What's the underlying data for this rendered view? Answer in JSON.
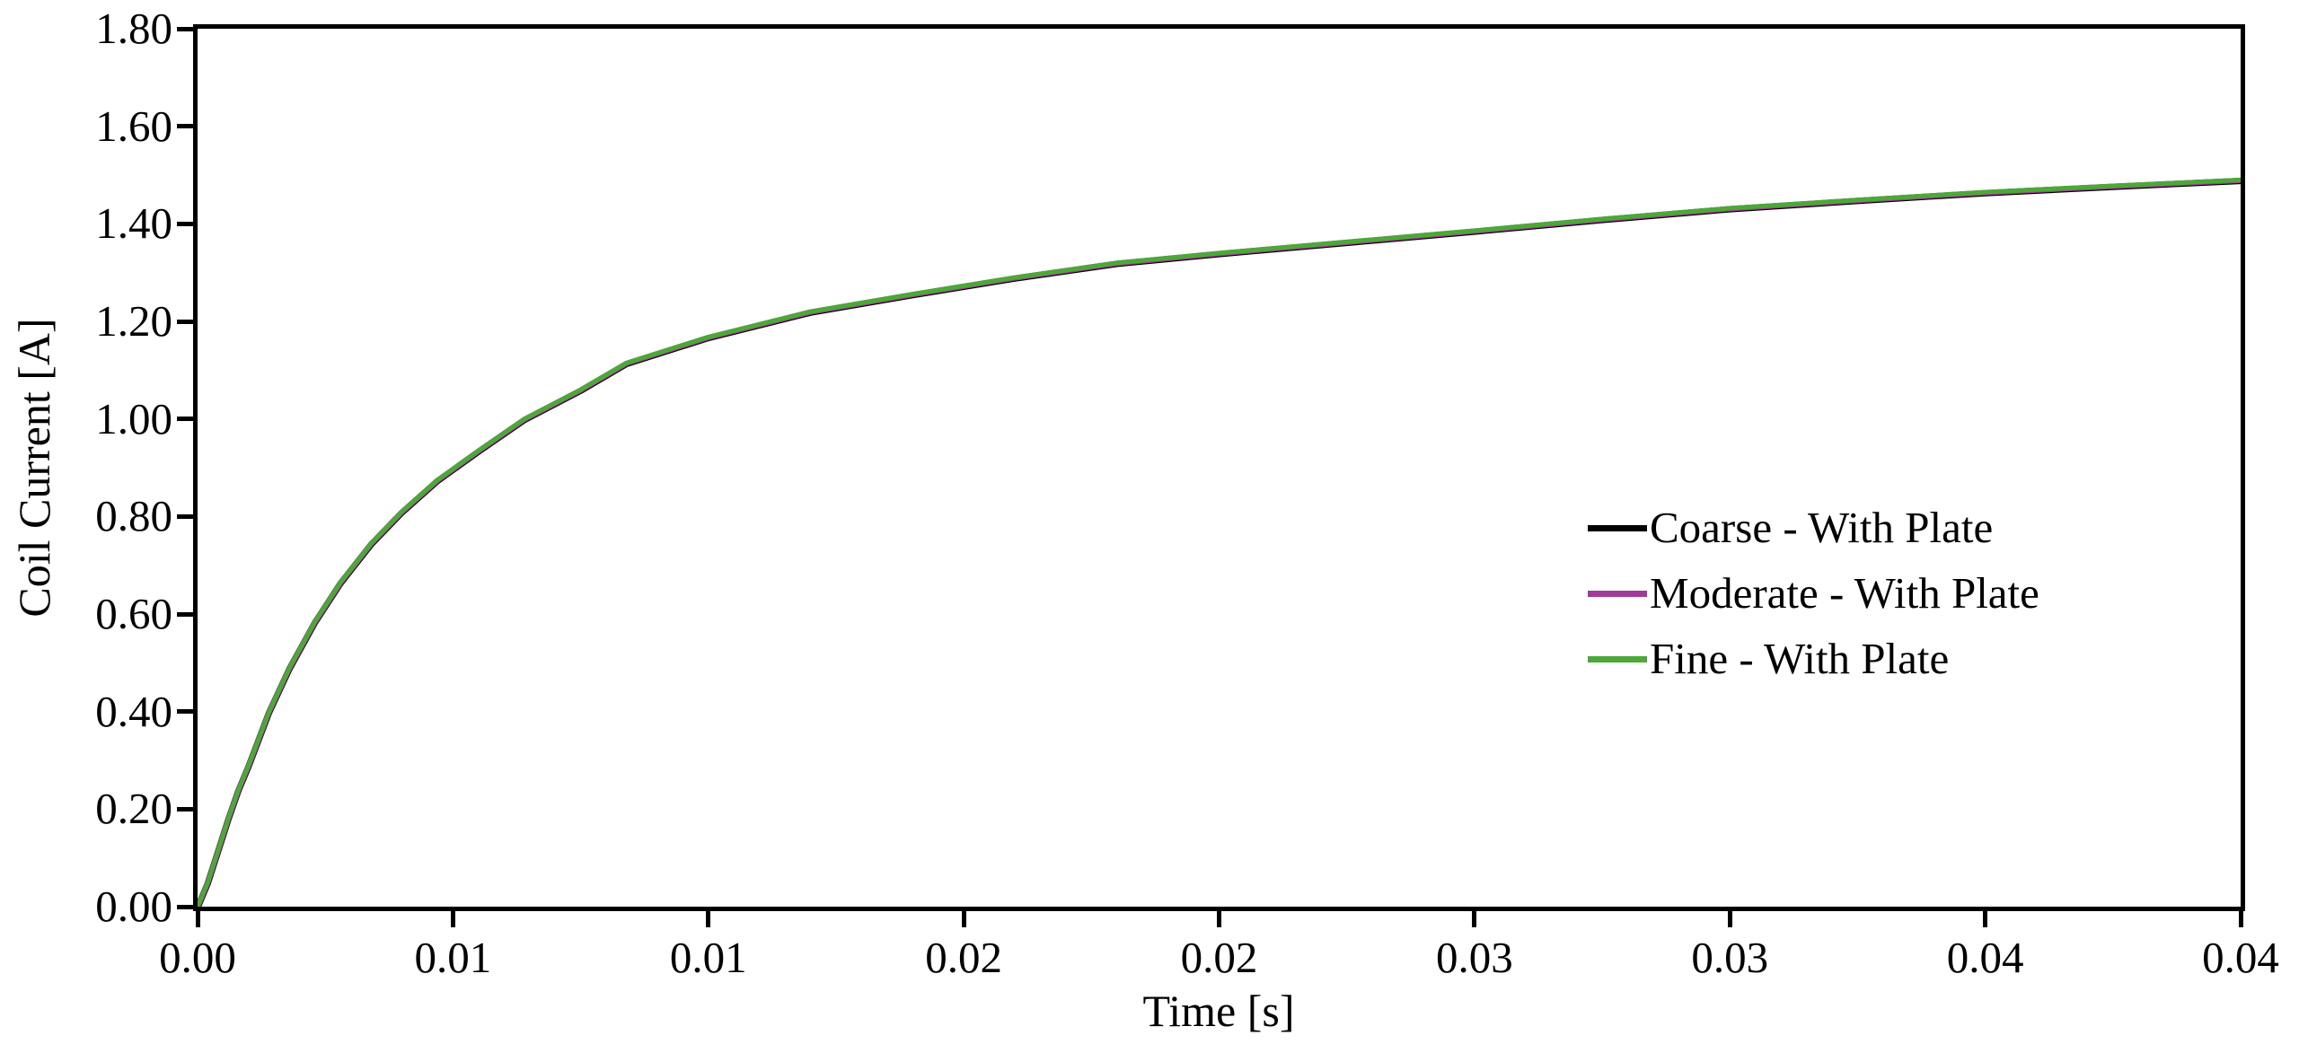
{
  "figure": {
    "background": "#FFFFFF",
    "axis_color": "#000000",
    "tick_style": "outside"
  },
  "chart_data": {
    "type": "line",
    "title": "",
    "xlabel": "Time [s]",
    "ylabel": "Coil Current [A]",
    "xlim": [
      0,
      0.04
    ],
    "ylim": [
      0,
      1.8
    ],
    "grid": "off",
    "legend_position": "inside-right-middle, no border",
    "x_ticks": [
      0,
      0.005,
      0.01,
      0.015,
      0.02,
      0.025,
      0.03,
      0.035,
      0.04
    ],
    "x_tick_labels": [
      "0.00",
      "0.01",
      "0.01",
      "0.02",
      "0.02",
      "0.03",
      "0.03",
      "0.04",
      "0.04"
    ],
    "y_ticks": [
      0,
      0.2,
      0.4,
      0.6,
      0.8,
      1.0,
      1.2,
      1.4,
      1.6,
      1.8
    ],
    "y_tick_labels": [
      "0.00",
      "0.20",
      "0.40",
      "0.60",
      "0.80",
      "1.00",
      "1.20",
      "1.40",
      "1.60",
      "1.80"
    ],
    "x": [
      0,
      0.0002,
      0.0004,
      0.0006,
      0.0008,
      0.001,
      0.0014,
      0.0018,
      0.0023,
      0.0028,
      0.0034,
      0.004,
      0.0047,
      0.0055,
      0.0064,
      0.0075,
      0.0084,
      0.01,
      0.012,
      0.014,
      0.016,
      0.018,
      0.02,
      0.0225,
      0.025,
      0.0275,
      0.03,
      0.0325,
      0.035,
      0.0375,
      0.04
    ],
    "series": [
      {
        "name": "Coarse - With Plate",
        "color": "#000000",
        "values": [
          0,
          0.05,
          0.115,
          0.18,
          0.24,
          0.29,
          0.4,
          0.49,
          0.585,
          0.665,
          0.745,
          0.81,
          0.875,
          0.935,
          1.0,
          1.06,
          1.115,
          1.168,
          1.22,
          1.256,
          1.29,
          1.32,
          1.34,
          1.363,
          1.386,
          1.41,
          1.432,
          1.449,
          1.465,
          1.478,
          1.49
        ]
      },
      {
        "name": "Moderate - With Plate",
        "color": "#A23A98",
        "values": [
          0,
          0.05,
          0.115,
          0.18,
          0.24,
          0.29,
          0.4,
          0.49,
          0.585,
          0.665,
          0.745,
          0.81,
          0.875,
          0.935,
          1.0,
          1.06,
          1.115,
          1.168,
          1.22,
          1.256,
          1.29,
          1.32,
          1.34,
          1.363,
          1.386,
          1.41,
          1.432,
          1.449,
          1.465,
          1.478,
          1.49
        ]
      },
      {
        "name": "Fine - With Plate",
        "color": "#4CA838",
        "values": [
          0,
          0.05,
          0.115,
          0.18,
          0.24,
          0.29,
          0.4,
          0.49,
          0.585,
          0.665,
          0.745,
          0.81,
          0.875,
          0.935,
          1.0,
          1.06,
          1.115,
          1.168,
          1.22,
          1.256,
          1.29,
          1.32,
          1.34,
          1.363,
          1.386,
          1.41,
          1.432,
          1.449,
          1.465,
          1.478,
          1.49
        ]
      }
    ]
  }
}
